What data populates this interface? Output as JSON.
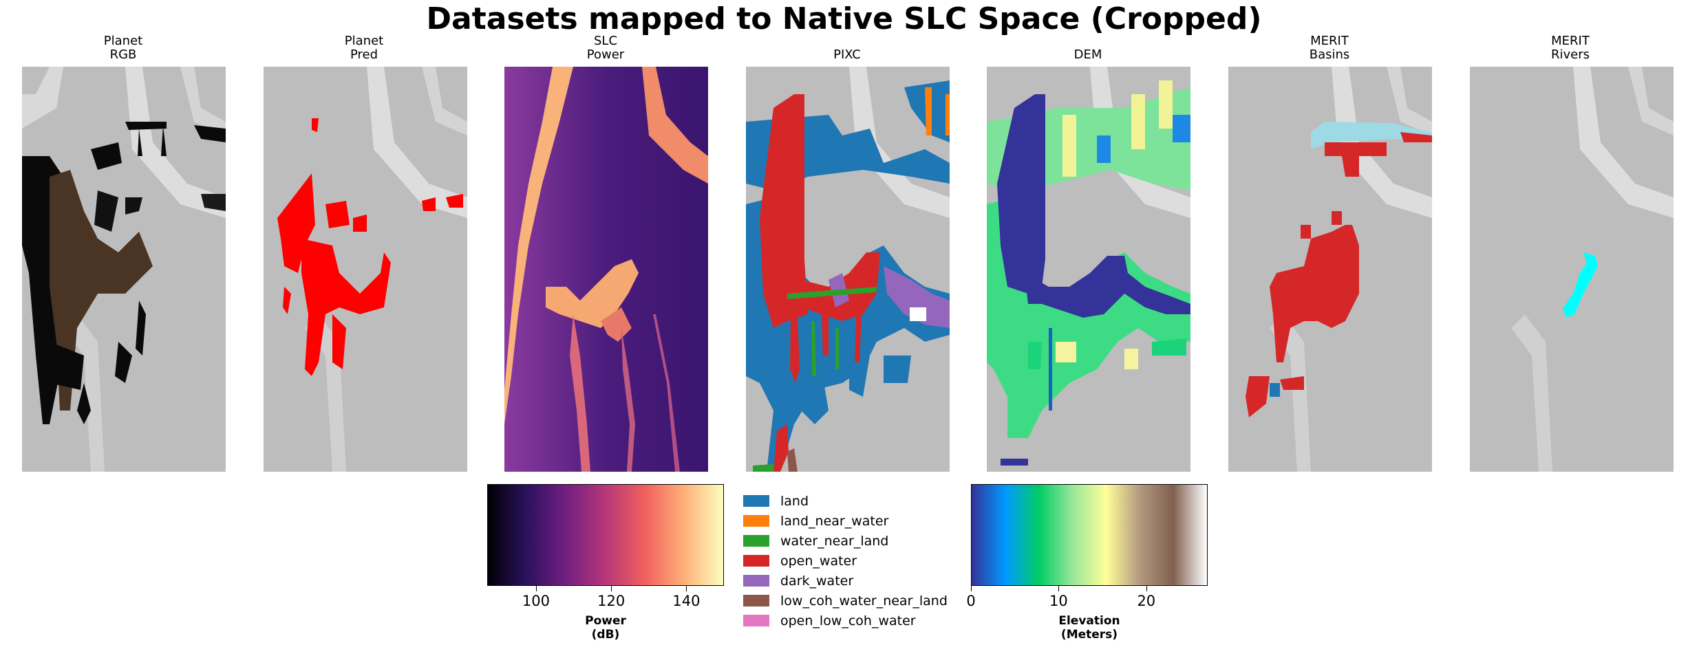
{
  "chart_data": {
    "type": "figure",
    "title": "Datasets mapped to Native SLC Space (Cropped)",
    "panels": [
      {
        "id": "planet-rgb",
        "line1": "Planet",
        "line2": "RGB"
      },
      {
        "id": "planet-pred",
        "line1": "Planet",
        "line2": "Pred"
      },
      {
        "id": "slc-power",
        "line1": "SLC",
        "line2": "Power"
      },
      {
        "id": "pixc",
        "line1": "PIXC",
        "line2": ""
      },
      {
        "id": "dem",
        "line1": "DEM",
        "line2": ""
      },
      {
        "id": "merit-basins",
        "line1": "MERIT",
        "line2": "Basins"
      },
      {
        "id": "merit-rivers",
        "line1": "MERIT",
        "line2": "Rivers"
      }
    ],
    "power_colorbar": {
      "label_line1": "Power",
      "label_line2": "(dB)",
      "colormap": "magma",
      "range": [
        87,
        150
      ],
      "ticks": [
        100,
        120,
        140
      ]
    },
    "elevation_colorbar": {
      "label_line1": "Elevation",
      "label_line2": "(Meters)",
      "colormap": "terrain",
      "range": [
        0,
        27
      ],
      "ticks": [
        0,
        10,
        20
      ]
    },
    "pixc_legend": [
      {
        "label": "land",
        "color": "#1f77b4"
      },
      {
        "label": "land_near_water",
        "color": "#ff7f0e"
      },
      {
        "label": "water_near_land",
        "color": "#2ca02c"
      },
      {
        "label": "open_water",
        "color": "#d62728"
      },
      {
        "label": "dark_water",
        "color": "#9467bd"
      },
      {
        "label": "low_coh_water_near_land",
        "color": "#8c564b"
      },
      {
        "label": "open_low_coh_water",
        "color": "#e377c2"
      }
    ]
  }
}
